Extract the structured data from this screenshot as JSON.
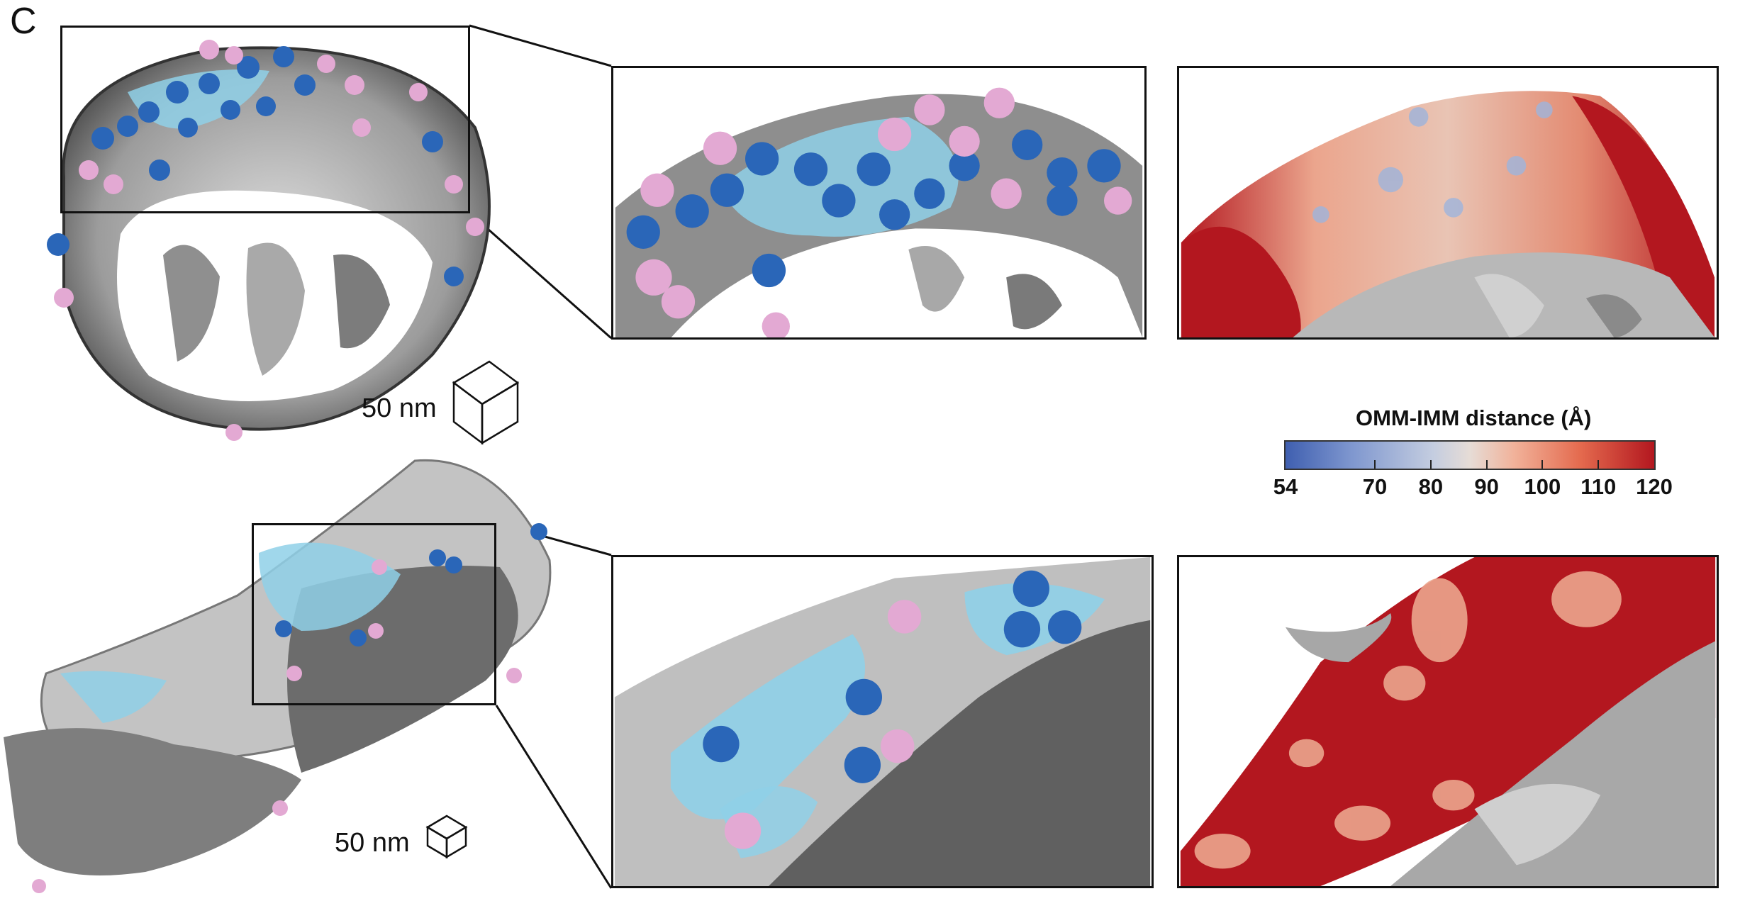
{
  "figure": {
    "panel_label": "C",
    "top_row": {
      "scale_label": "50 nm"
    },
    "bottom_row": {
      "scale_label": "50 nm"
    },
    "colorbar": {
      "title": "OMM-IMM distance (Å)",
      "min": 54,
      "max": 120,
      "ticks": [
        "54",
        "70",
        "80",
        "90",
        "100",
        "110",
        "120"
      ],
      "tick_values": [
        54,
        70,
        80,
        90,
        100,
        110,
        120
      ],
      "colors": [
        "#3f5fb0",
        "#c4cde0",
        "#e6dcd6",
        "#b3171f"
      ]
    },
    "colors": {
      "membrane_gray": "#9a9a9a",
      "contact_site_cyan": "#8fd0e8",
      "protein_blue": "#2a66b8",
      "protein_pink": "#e3a9d3",
      "distance_red": "#b3171f"
    }
  }
}
